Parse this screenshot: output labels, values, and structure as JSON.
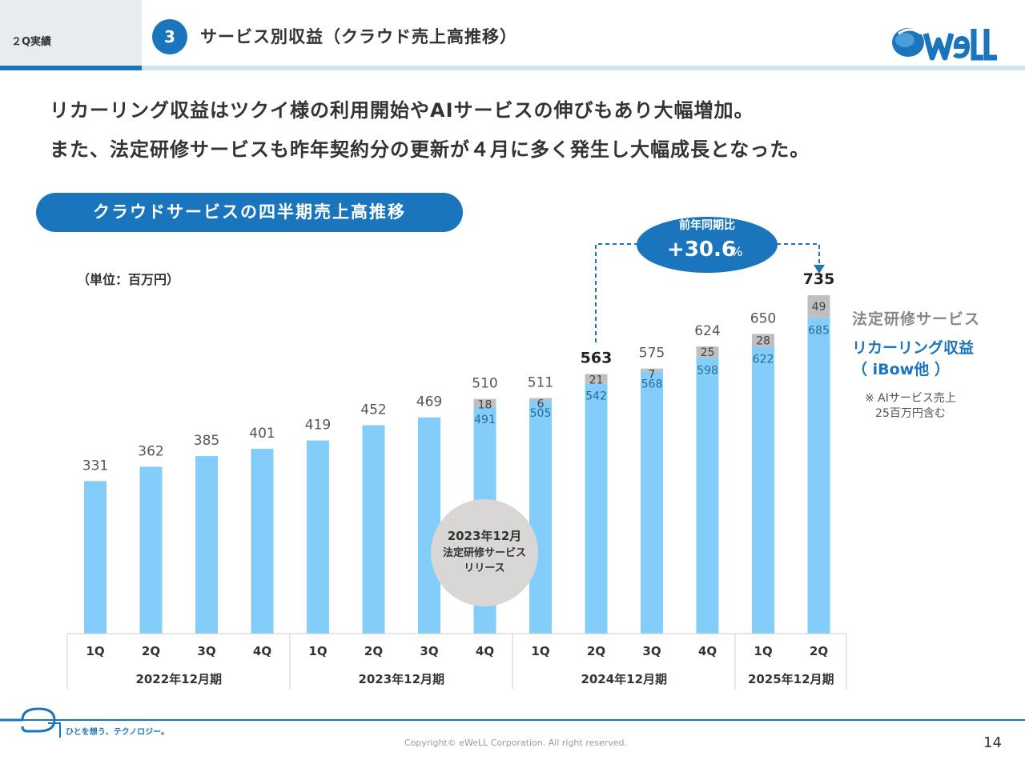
{
  "header": {
    "section": "２Q実績",
    "number": "3",
    "title": "サービス別収益（クラウド売上高推移）"
  },
  "lead": {
    "line1": "リカーリング収益はツクイ様の利用開始やAIサービスの伸びもあり大幅増加。",
    "line2": "また、法定研修サービスも昨年契約分の更新が４月に多く発生し大幅成長となった。"
  },
  "pill_label": "クラウドサービスの四半期売上高推移",
  "unit_label": "（単位：百万円）",
  "chart_data": {
    "type": "bar",
    "stacked": true,
    "categories": [
      "1Q",
      "2Q",
      "3Q",
      "4Q",
      "1Q",
      "2Q",
      "3Q",
      "4Q",
      "1Q",
      "2Q",
      "3Q",
      "4Q",
      "1Q",
      "2Q"
    ],
    "groups": [
      {
        "label": "2022年12月期",
        "start": 0,
        "end": 3
      },
      {
        "label": "2023年12月期",
        "start": 4,
        "end": 7
      },
      {
        "label": "2024年12月期",
        "start": 8,
        "end": 11
      },
      {
        "label": "2025年12月期",
        "start": 12,
        "end": 13
      }
    ],
    "series": [
      {
        "name": "リカーリング収益",
        "color": "#82cdfa",
        "values": [
          331,
          362,
          385,
          401,
          419,
          452,
          469,
          491,
          505,
          542,
          568,
          598,
          622,
          685
        ]
      },
      {
        "name": "法定研修サービス",
        "color": "#bfbfbf",
        "values": [
          null,
          null,
          null,
          null,
          null,
          null,
          null,
          18,
          6,
          21,
          7,
          25,
          28,
          49
        ]
      }
    ],
    "totals": [
      331,
      362,
      385,
      401,
      419,
      452,
      469,
      510,
      511,
      563,
      575,
      624,
      650,
      735
    ],
    "bold_totals": [
      9,
      13
    ],
    "ylim": [
      0,
      800
    ]
  },
  "legend": {
    "legal": "法定研修サービス",
    "recurring_line1": "リカーリング収益",
    "recurring_line2": "（ iBow他 ）",
    "note_line1": "※ AIサービス売上",
    "note_line2": "25百万円含む"
  },
  "yoy": {
    "label": "前年同期比",
    "value": "+30.6",
    "suffix": "%"
  },
  "release": {
    "line1": "2023年12月",
    "line2": "法定研修サービス",
    "line3": "リリース"
  },
  "footer": {
    "tagline": "ひとを想う、テクノロジー。",
    "copyright": "Copyright© eWeLL Corporation. All right reserved.",
    "page": "14"
  },
  "colors": {
    "brand": "#1a75bc",
    "recurring": "#82cdfa",
    "legal": "#bfbfbf"
  }
}
